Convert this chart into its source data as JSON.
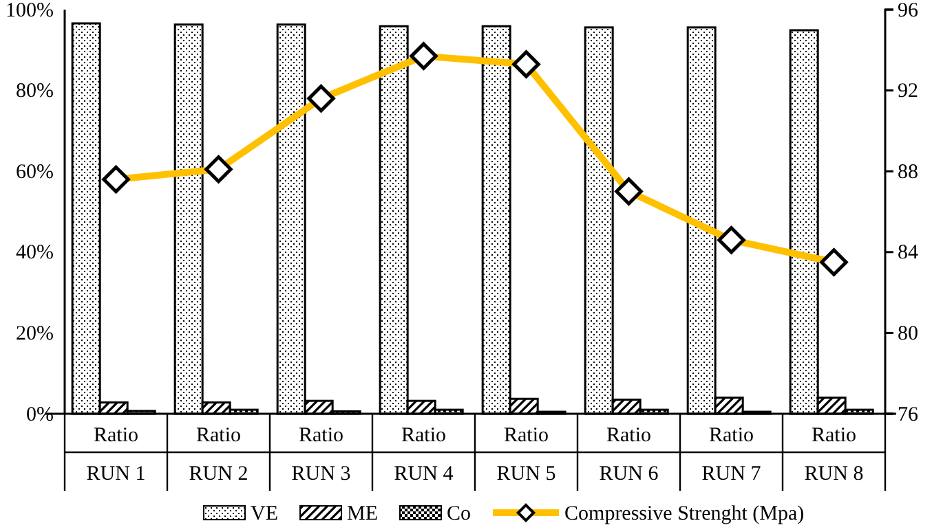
{
  "chart_data": {
    "type": "bar",
    "categories": [
      "Ratio\nRUN 1",
      "Ratio\nRUN 2",
      "Ratio\nRUN 3",
      "Ratio\nRUN 4",
      "Ratio\nRUN 5",
      "Ratio\nRUN 6",
      "Ratio\nRUN 7",
      "Ratio\nRUN 8"
    ],
    "series": [
      {
        "name": "VE",
        "color": "#000000",
        "values": [
          96.6,
          96.3,
          96.3,
          95.9,
          95.9,
          95.6,
          95.6,
          94.9
        ]
      },
      {
        "name": "ME",
        "color": "#000000",
        "values": [
          2.8,
          2.8,
          3.2,
          3.2,
          3.7,
          3.5,
          4.0,
          4.0
        ]
      },
      {
        "name": "Co",
        "color": "#000000",
        "values": [
          0.7,
          1.0,
          0.6,
          1.0,
          0.5,
          1.0,
          0.5,
          1.0
        ]
      },
      {
        "name": "Compressive Strenght (Mpa)",
        "type": "line",
        "axis": "y2",
        "color": "#ffc000",
        "marker": "diamond",
        "values": [
          87.6,
          88.1,
          91.6,
          93.7,
          93.3,
          87.0,
          84.6,
          83.5
        ]
      }
    ],
    "ylim": [
      0,
      100
    ],
    "yticks": [
      {
        "value": 0,
        "label": "0%"
      },
      {
        "value": 20,
        "label": "20%"
      },
      {
        "value": 40,
        "label": "40%"
      },
      {
        "value": 60,
        "label": "60%"
      },
      {
        "value": 80,
        "label": "80%"
      },
      {
        "value": 100,
        "label": "100%"
      }
    ],
    "y2lim": [
      76,
      96
    ],
    "y2ticks": [
      76,
      80,
      84,
      88,
      92,
      96
    ],
    "legend": "bottom",
    "grid": false
  }
}
